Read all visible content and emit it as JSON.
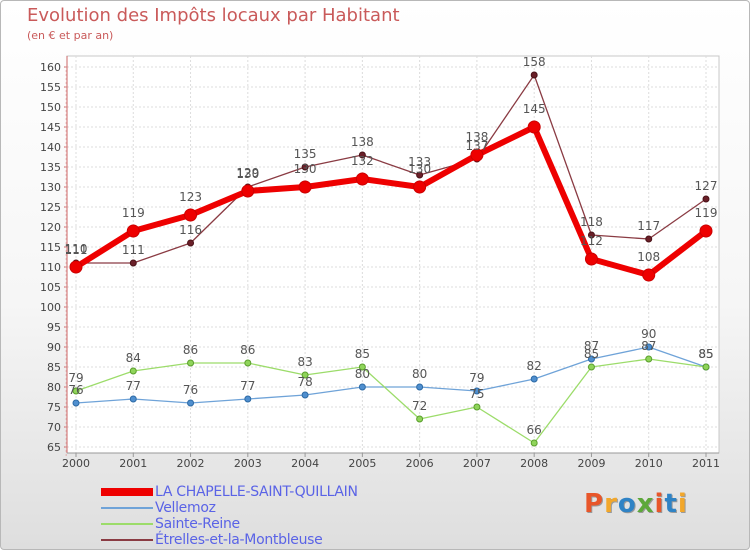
{
  "header": {
    "title": "Evolution des Impôts locaux par Habitant",
    "subtitle": "(en € et par an)"
  },
  "branding": {
    "logo_text": "Proxiti",
    "logo_colors": [
      "#e8562a",
      "#f2a72b",
      "#2f83c5",
      "#5da83a",
      "#e8562a",
      "#2f83c5",
      "#f2a72b"
    ]
  },
  "chart_data": {
    "type": "line",
    "title": "Evolution des Impôts locaux par Habitant",
    "subtitle": "(en € et par an)",
    "x": [
      "2000",
      "2001",
      "2002",
      "2003",
      "2004",
      "2005",
      "2006",
      "2007",
      "2008",
      "2009",
      "2010",
      "2011"
    ],
    "y_ticks": [
      65,
      70,
      75,
      80,
      85,
      90,
      95,
      100,
      105,
      110,
      115,
      120,
      125,
      130,
      135,
      140,
      145,
      150,
      155,
      160
    ],
    "ylim": [
      63,
      161
    ],
    "grid": true,
    "legend_position": "bottom-left",
    "series": [
      {
        "name": "LA CHAPELLE-SAINT-QUILLAIN",
        "color": "#ee0000",
        "values": [
          110,
          119,
          123,
          129,
          130,
          132,
          130,
          138,
          145,
          112,
          108,
          119
        ]
      },
      {
        "name": "Vellemoz",
        "color": "#6fa3d8",
        "values": [
          76,
          77,
          76,
          77,
          78,
          80,
          80,
          79,
          82,
          87,
          90,
          85
        ]
      },
      {
        "name": "Sainte-Reine",
        "color": "#9cdc6a",
        "values": [
          79,
          84,
          86,
          86,
          83,
          85,
          72,
          75,
          66,
          85,
          87,
          85
        ]
      },
      {
        "name": "Étrelles-et-la-Montbleuse",
        "color": "#8a3b43",
        "values": [
          111,
          111,
          116,
          130,
          135,
          138,
          133,
          137,
          158,
          118,
          117,
          127
        ]
      }
    ]
  }
}
